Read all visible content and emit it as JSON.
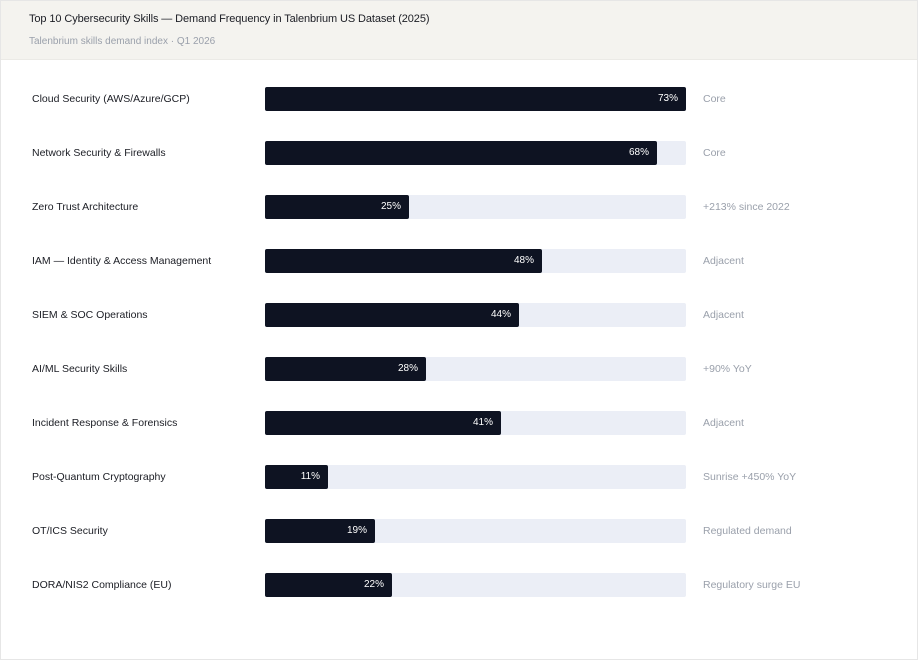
{
  "header": {
    "title": "Top 10 Cybersecurity Skills — Demand Frequency in Talenbrium US Dataset (2025)",
    "subtitle": "Talenbrium skills demand index · Q1 2026"
  },
  "colors": {
    "bar": "#0e1322",
    "track": "#ebeef6",
    "header_bg": "#f4f3ef",
    "label": "#1b1d24",
    "note": "#9aa0ab"
  },
  "chart_data": {
    "type": "bar",
    "orientation": "horizontal",
    "title": "Top 10 Cybersecurity Skills — Demand Frequency in Talenbrium US Dataset (2025)",
    "subtitle": "Talenbrium skills demand index · Q1 2026",
    "xlim": [
      0,
      73
    ],
    "grid": false,
    "categories": [
      "Cloud Security (AWS/Azure/GCP)",
      "Network Security & Firewalls",
      "Zero Trust Architecture",
      "IAM — Identity & Access Management",
      "SIEM & SOC Operations",
      "AI/ML Security Skills",
      "Incident Response & Forensics",
      "Post-Quantum Cryptography",
      "OT/ICS Security",
      "DORA/NIS2 Compliance (EU)"
    ],
    "values": [
      73,
      68,
      25,
      48,
      44,
      28,
      41,
      11,
      19,
      22
    ],
    "value_labels": [
      "73%",
      "68%",
      "25%",
      "48%",
      "44%",
      "28%",
      "41%",
      "11%",
      "19%",
      "22%"
    ],
    "notes": [
      "Core",
      "Core",
      "+213% since 2022",
      "Adjacent",
      "Adjacent",
      "+90% YoY",
      "Adjacent",
      "Sunrise +450% YoY",
      "Regulated demand",
      "Regulatory surge EU"
    ]
  }
}
